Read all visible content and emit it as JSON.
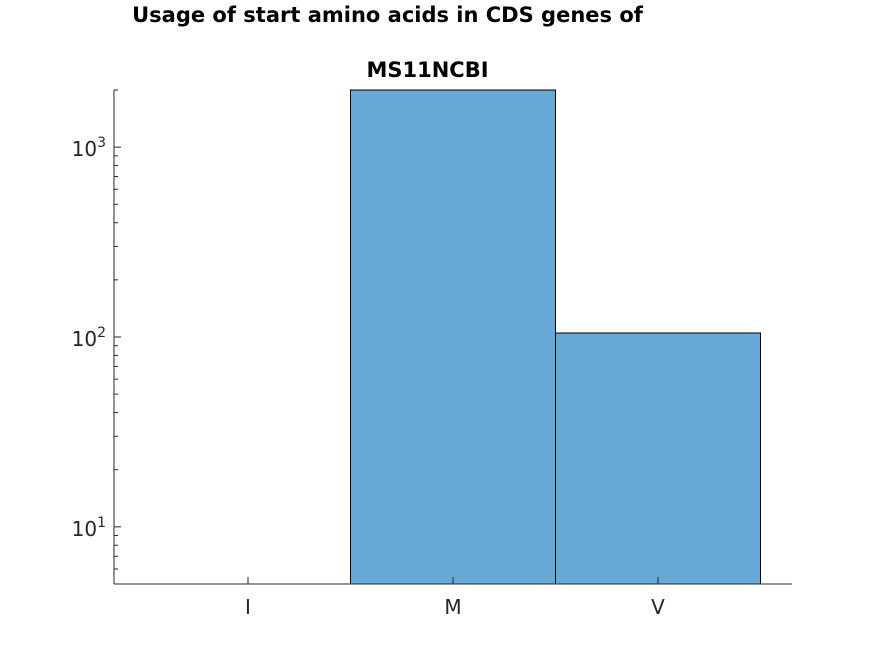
{
  "title_lines": [
    "Usage of start amino acids in CDS genes of",
    "MS11NCBI"
  ],
  "chart_data": {
    "type": "bar",
    "title": "Usage of start amino acids in CDS genes of MS11NCBI",
    "xlabel": "",
    "ylabel": "",
    "categories": [
      "I",
      "M",
      "V"
    ],
    "values": [
      5,
      2000,
      105
    ],
    "yscale": "log",
    "ylim": [
      5,
      2000
    ],
    "ytick_labels": [
      {
        "value": 10,
        "base": "10",
        "exp": "1"
      },
      {
        "value": 100,
        "base": "10",
        "exp": "2"
      },
      {
        "value": 1000,
        "base": "10",
        "exp": "3"
      }
    ],
    "grid": false,
    "legend": "none",
    "colors": {
      "bar_fill": "#66a9d7",
      "bar_edge": "#000000",
      "axis": "#262626"
    }
  }
}
